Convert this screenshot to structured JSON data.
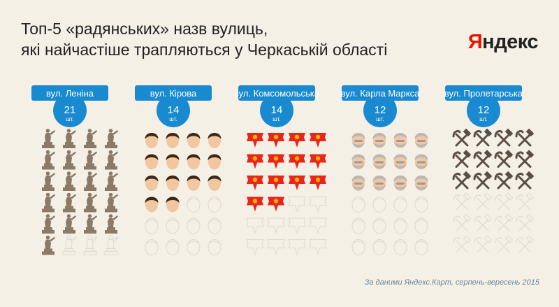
{
  "header": {
    "title_line1": "Топ-5 «радянських» назв вулиць,",
    "title_line2": "які найчастіше трапляються у Черкаській області",
    "logo_first": "Я",
    "logo_rest": "ндекс"
  },
  "footer": {
    "source": "За даними Яндекс.Карт, серпень-вересень 2015"
  },
  "colors": {
    "badge": "#1a8ad0",
    "statue": "#8b7a66",
    "empty_outline": "#e2ddd3",
    "hair": "#3b2714",
    "face": "#f2c7a0",
    "gray": "#b8b8b8",
    "flag": "#e8261b",
    "flag_star": "#f2b400",
    "hammer": "#5a4e44"
  },
  "chart_data": {
    "type": "pictogram",
    "unit": "шт.",
    "max_icons": 24,
    "columns_per_group": 4,
    "categories": [
      "вул. Леніна",
      "вул. Кірова",
      "вул. Комсомольська",
      "вул. Карла Маркса",
      "вул. Пролетарська"
    ],
    "values": [
      21,
      14,
      14,
      12,
      12
    ],
    "icons": [
      "lenin-statue-icon",
      "kirov-face-icon",
      "komsomol-flag-icon",
      "marx-face-icon",
      "hammer-sickle-icon"
    ]
  }
}
